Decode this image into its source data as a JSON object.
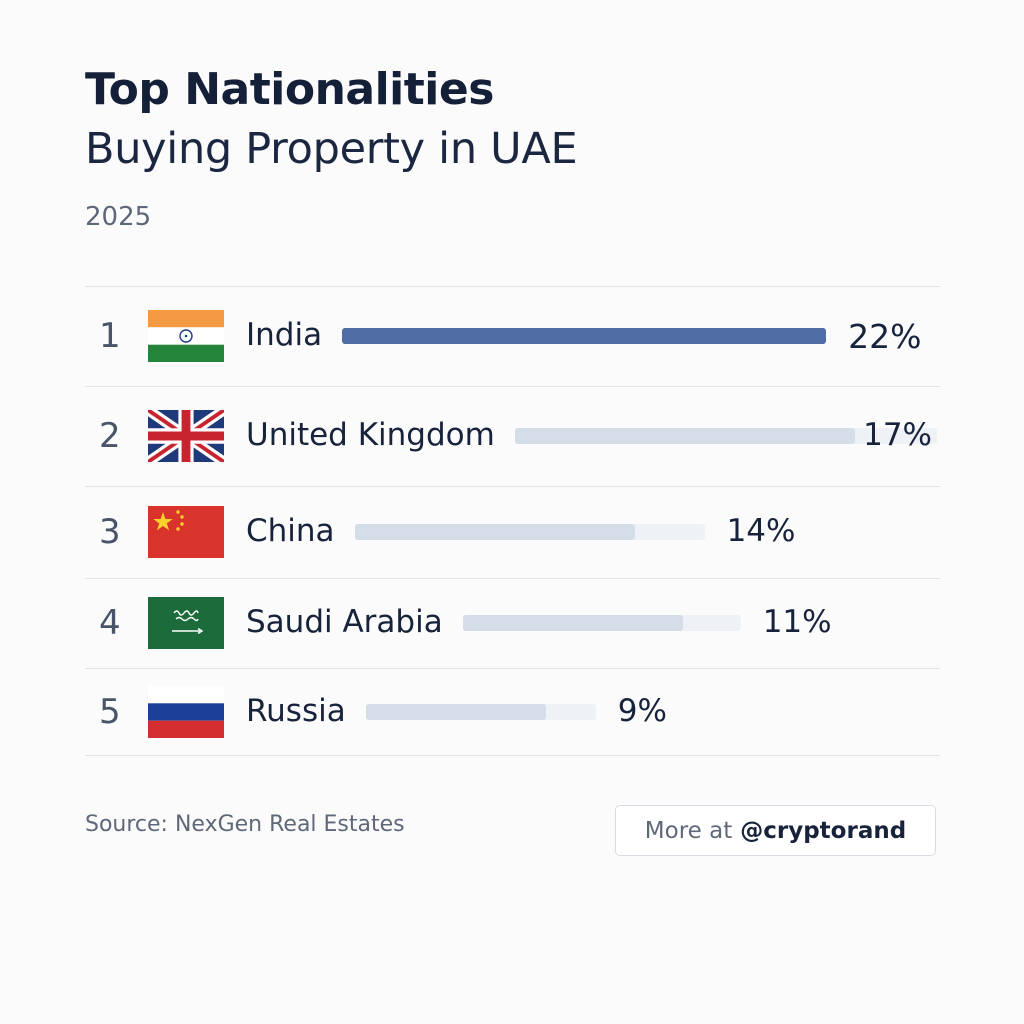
{
  "header": {
    "title": "Top Nationalities",
    "subtitle": "Buying Property in UAE",
    "year": "2025"
  },
  "chart_data": {
    "type": "bar",
    "orientation": "horizontal",
    "title": "Top Nationalities",
    "subtitle": "Buying Property in UAE",
    "year": "2025",
    "unit": "%",
    "categories": [
      "India",
      "United Kingdom",
      "China",
      "Saudi Arabia",
      "Russia"
    ],
    "ranks": [
      "1",
      "2",
      "3",
      "4",
      "5"
    ],
    "values": [
      22,
      17,
      14,
      11,
      9
    ],
    "value_labels": [
      "22%",
      "17%",
      "14%",
      "11%",
      "9%"
    ],
    "flags": [
      "india-flag",
      "united-kingdom-flag",
      "china-flag",
      "saudi-arabia-flag",
      "russia-flag"
    ],
    "grid": false,
    "legend": "none",
    "highlight_color": "#506da4",
    "bar_color": "#d4dde8",
    "track_color": "#eef1f5"
  },
  "footer": {
    "source": "Source: NexGen Real Estates",
    "more_prefix": "More at",
    "more_handle": "@cryptorand"
  }
}
